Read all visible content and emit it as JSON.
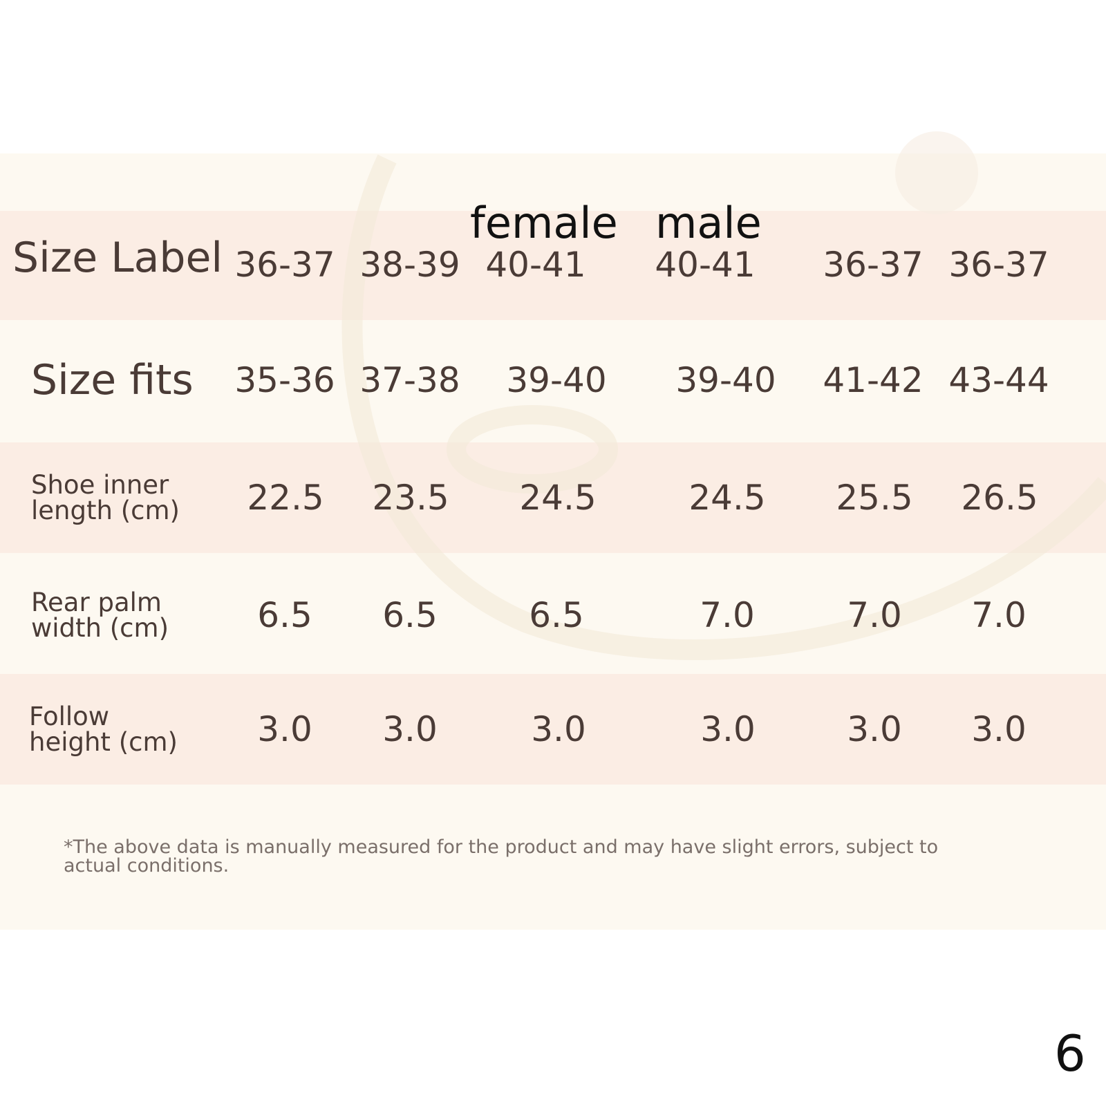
{
  "header": {
    "female": "female",
    "male": "male"
  },
  "table": {
    "rows": [
      [
        "Size Label",
        "36-37",
        "38-39",
        "40-41",
        "40-41",
        "36-37",
        "36-37"
      ],
      [
        "Size fits",
        "35-36",
        "37-38",
        "39-40",
        "39-40",
        "41-42",
        "43-44"
      ],
      [
        "Shoe inner length (cm)",
        "22.5",
        "23.5",
        "24.5",
        "24.5",
        "25.5",
        "26.5"
      ],
      [
        "Rear palm width (cm)",
        "6.5",
        "6.5",
        "6.5",
        "7.0",
        "7.0",
        "7.0"
      ],
      [
        "Follow height (cm)",
        "3.0",
        "3.0",
        "3.0",
        "3.0",
        "3.0",
        "3.0"
      ]
    ]
  },
  "footnote": "*The above data is manually measured for the product and may have slight errors, subject to actual conditions.",
  "page_number": "6"
}
